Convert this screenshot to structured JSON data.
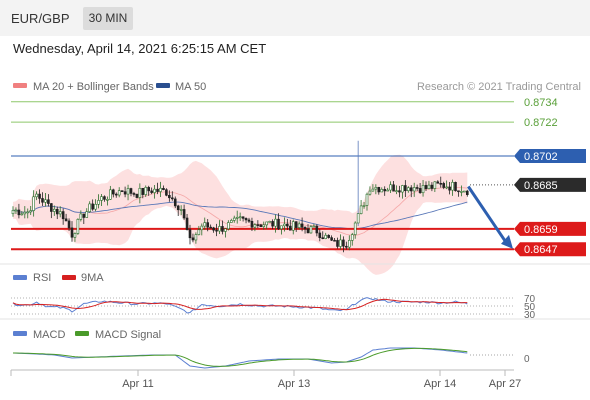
{
  "header": {
    "pair": "EUR/GBP",
    "timeframe": "30 MIN",
    "date": "Wednesday, April 14, 2021 6:25:15 AM CET"
  },
  "colors": {
    "bollinger": "#f08080",
    "ma50": "#2a4f8f",
    "rsi": "#5b7fd1",
    "ma9": "#d62020",
    "macd": "#5b7fd1",
    "macd_signal": "#4a9a2a",
    "resistance": "#8ec76a",
    "current": "#2d5fb0",
    "support": "#dd1a1a",
    "up": "#2a6e2a",
    "down": "#222222"
  },
  "chart_data": [
    {
      "type": "candlestick",
      "legend": {
        "bb": "MA 20 + Bollinger Bands",
        "ma50": "MA 50"
      },
      "credit": "Research © 2021 Trading Central",
      "x_ticks": [
        "Apr 11",
        "Apr 13",
        "Apr 14",
        "Apr 27"
      ],
      "levels": [
        {
          "label": "0.8734",
          "kind": "resistance"
        },
        {
          "label": "0.8722",
          "kind": "resistance"
        },
        {
          "label": "0.8702",
          "kind": "pivot"
        },
        {
          "label": "0.8685",
          "kind": "last"
        },
        {
          "label": "0.8659",
          "kind": "support"
        },
        {
          "label": "0.8647",
          "kind": "support"
        }
      ],
      "close_keyframes": [
        [
          0,
          0.867
        ],
        [
          5,
          0.8669
        ],
        [
          8,
          0.8679
        ],
        [
          12,
          0.8673
        ],
        [
          17,
          0.8667
        ],
        [
          20,
          0.8656
        ],
        [
          24,
          0.8668
        ],
        [
          30,
          0.8677
        ],
        [
          37,
          0.8682
        ],
        [
          42,
          0.868
        ],
        [
          47,
          0.8682
        ],
        [
          52,
          0.8681
        ],
        [
          57,
          0.8671
        ],
        [
          60,
          0.8651
        ],
        [
          64,
          0.8661
        ],
        [
          70,
          0.8659
        ],
        [
          77,
          0.8664
        ],
        [
          84,
          0.8662
        ],
        [
          90,
          0.8662
        ],
        [
          96,
          0.866
        ],
        [
          103,
          0.8658
        ],
        [
          109,
          0.865
        ],
        [
          113,
          0.8651
        ],
        [
          117,
          0.8666
        ],
        [
          121,
          0.8684
        ],
        [
          126,
          0.8683
        ],
        [
          133,
          0.8684
        ],
        [
          140,
          0.8683
        ],
        [
          145,
          0.8685
        ],
        [
          150,
          0.8684
        ],
        [
          154,
          0.8682
        ]
      ],
      "spikes": [
        {
          "i": 117,
          "high": 0.8711
        }
      ],
      "y_range": [
        0.8643,
        0.8738
      ],
      "forecast": {
        "from": 0.8684,
        "to": 0.8649
      }
    },
    {
      "type": "line",
      "legend": {
        "rsi": "RSI",
        "ma9": "9MA"
      },
      "y_ticks": [
        "70",
        "50",
        "30"
      ],
      "rsi_keyframes": [
        [
          0,
          55
        ],
        [
          5,
          52
        ],
        [
          8,
          60
        ],
        [
          12,
          48
        ],
        [
          17,
          45
        ],
        [
          20,
          38
        ],
        [
          24,
          55
        ],
        [
          30,
          62
        ],
        [
          37,
          58
        ],
        [
          42,
          55
        ],
        [
          47,
          57
        ],
        [
          52,
          56
        ],
        [
          57,
          42
        ],
        [
          60,
          32
        ],
        [
          64,
          54
        ],
        [
          70,
          50
        ],
        [
          77,
          55
        ],
        [
          84,
          50
        ],
        [
          90,
          50
        ],
        [
          96,
          48
        ],
        [
          103,
          45
        ],
        [
          109,
          38
        ],
        [
          113,
          40
        ],
        [
          117,
          62
        ],
        [
          121,
          70
        ],
        [
          126,
          62
        ],
        [
          133,
          60
        ],
        [
          140,
          60
        ],
        [
          145,
          58
        ],
        [
          150,
          60
        ],
        [
          154,
          56
        ]
      ]
    },
    {
      "type": "line",
      "legend": {
        "macd": "MACD",
        "signal": "MACD Signal"
      },
      "y_ticks": [
        "0"
      ],
      "macd_keyframes": [
        [
          0,
          0.0005
        ],
        [
          8,
          0.0004
        ],
        [
          14,
          0.0003
        ],
        [
          20,
          0.0
        ],
        [
          28,
          0.0001
        ],
        [
          37,
          0.0002
        ],
        [
          47,
          0.0003
        ],
        [
          55,
          0.0003
        ],
        [
          60,
          -0.0008
        ],
        [
          65,
          -0.001
        ],
        [
          72,
          -0.0008
        ],
        [
          80,
          -0.0003
        ],
        [
          90,
          -0.0001
        ],
        [
          100,
          -0.0001
        ],
        [
          108,
          -0.0005
        ],
        [
          113,
          -0.0004
        ],
        [
          118,
          0.0001
        ],
        [
          122,
          0.0008
        ],
        [
          128,
          0.001
        ],
        [
          136,
          0.001
        ],
        [
          145,
          0.0008
        ],
        [
          154,
          0.0005
        ]
      ]
    }
  ]
}
